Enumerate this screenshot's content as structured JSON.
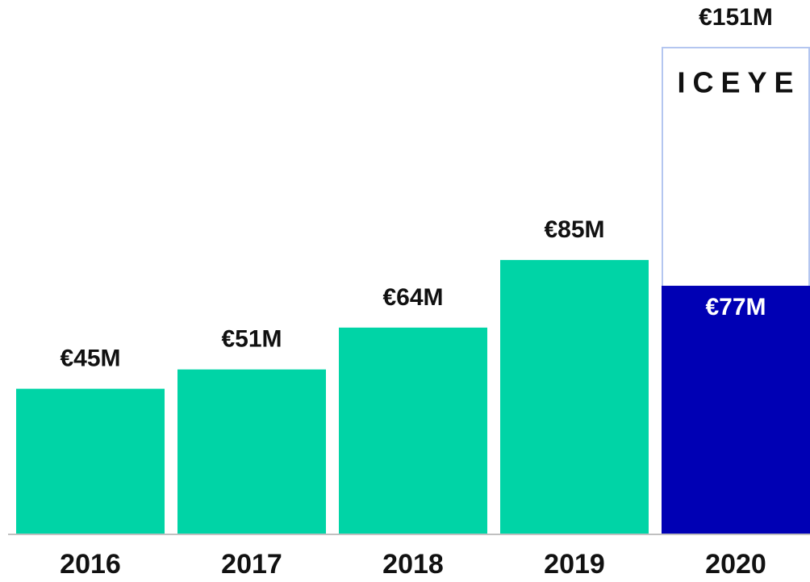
{
  "chart_data": {
    "type": "bar",
    "categories": [
      "2016",
      "2017",
      "2018",
      "2019",
      "2020"
    ],
    "series": [
      {
        "color": "#ffffff",
        "edge": "#b4c6f0",
        "label_position": "above",
        "values": [
          null,
          null,
          null,
          null,
          151
        ],
        "value_labels": [
          null,
          null,
          null,
          null,
          "€151M"
        ]
      },
      {
        "color": "#00d4a6",
        "label_position": "above",
        "values": [
          45,
          51,
          64,
          85,
          null
        ],
        "value_labels": [
          "€45M",
          "€51M",
          "€64M",
          "€85M",
          null
        ]
      },
      {
        "color": "#0000b4",
        "label_color": "#ffffff",
        "label_position": "inside",
        "values": [
          null,
          null,
          null,
          null,
          77
        ],
        "value_labels": [
          null,
          null,
          null,
          null,
          "€77M"
        ]
      }
    ],
    "annotation": "ICEYE",
    "baseline_color": "#c0c0c0"
  }
}
